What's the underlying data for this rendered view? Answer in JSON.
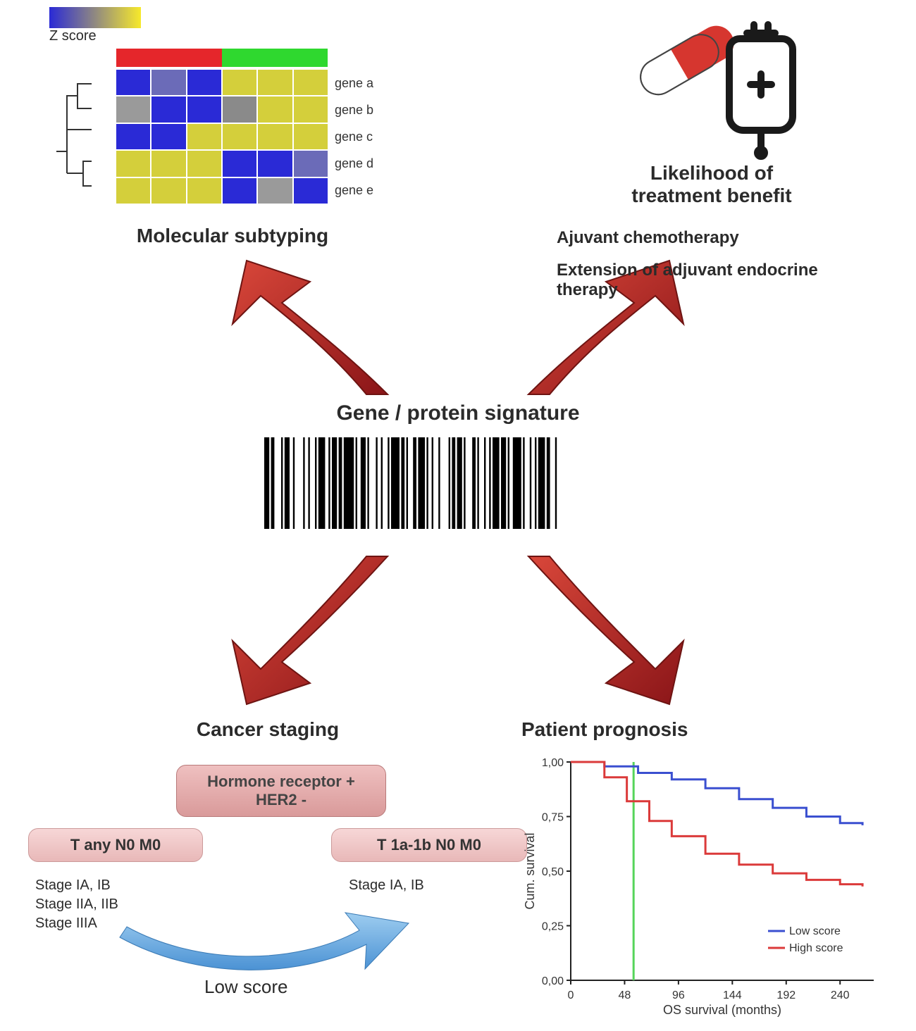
{
  "center": {
    "title": "Gene / protein signature"
  },
  "molecular_subtyping": {
    "title": "Molecular subtyping",
    "z_label": "Z score",
    "gene_labels": [
      "gene a",
      "gene b",
      "gene c",
      "gene d",
      "gene e"
    ],
    "colorbar": {
      "low": "#2a2ad6",
      "high": "#f7e92b"
    },
    "group_bar": {
      "left": "#e5262b",
      "right": "#2fd82f"
    },
    "heatmap": {
      "rows": 5,
      "cols": 6,
      "cells": [
        [
          "#2a2ad6",
          "#6b6bb8",
          "#2a2ad6",
          "#d4cf3b",
          "#d4cf3b",
          "#d4cf3b"
        ],
        [
          "#9a9a9a",
          "#2a2ad6",
          "#2a2ad6",
          "#8a8a8a",
          "#d4cf3b",
          "#d4cf3b"
        ],
        [
          "#2a2ad6",
          "#2a2ad6",
          "#d4cf3b",
          "#d4cf3b",
          "#d4cf3b",
          "#d4cf3b"
        ],
        [
          "#d4cf3b",
          "#d4cf3b",
          "#d4cf3b",
          "#2a2ad6",
          "#2a2ad6",
          "#6b6bb8"
        ],
        [
          "#d4cf3b",
          "#d4cf3b",
          "#d4cf3b",
          "#2a2ad6",
          "#9a9a9a",
          "#2a2ad6"
        ]
      ]
    }
  },
  "treatment_benefit": {
    "title": "Likelihood of\ntreatment benefit",
    "line1": "Ajuvant chemotherapy",
    "line2": "Extension of adjuvant endocrine therapy",
    "pill_colors": {
      "red": "#d6362f",
      "white": "#fafafa",
      "outline": "#1a1a1a"
    }
  },
  "cancer_staging": {
    "title": "Cancer staging",
    "hormone": "Hormone receptor +\nHER2 -",
    "left_pill": "T any  N0  M0",
    "right_pill": "T 1a-1b  N0  M0",
    "left_stages": [
      "Stage IA, IB",
      "Stage IIA, IIB",
      "Stage IIIA"
    ],
    "right_stages": [
      "Stage IA, IB"
    ],
    "arrow_label": "Low score",
    "arrow_color": "#5aa5e6"
  },
  "prognosis": {
    "title": "Patient prognosis",
    "ylabel": "Cum. survival",
    "xlabel": "OS survival (months)",
    "yticks": [
      "1,00",
      "0,75",
      "0,50",
      "0,25",
      "0,00"
    ],
    "xticks": [
      "0",
      "48",
      "96",
      "144",
      "192",
      "240"
    ],
    "legend": {
      "low": "Low score",
      "high": "High score"
    },
    "colors": {
      "low": "#3a4fd0",
      "high": "#db3a3a",
      "cutline": "#56d45a",
      "axis": "#222"
    },
    "low_points": [
      [
        0,
        1.0
      ],
      [
        30,
        0.98
      ],
      [
        60,
        0.95
      ],
      [
        90,
        0.92
      ],
      [
        120,
        0.88
      ],
      [
        150,
        0.83
      ],
      [
        180,
        0.79
      ],
      [
        210,
        0.75
      ],
      [
        240,
        0.72
      ],
      [
        260,
        0.71
      ]
    ],
    "high_points": [
      [
        0,
        1.0
      ],
      [
        30,
        0.93
      ],
      [
        50,
        0.82
      ],
      [
        70,
        0.73
      ],
      [
        90,
        0.66
      ],
      [
        120,
        0.58
      ],
      [
        150,
        0.53
      ],
      [
        180,
        0.49
      ],
      [
        210,
        0.46
      ],
      [
        240,
        0.44
      ],
      [
        260,
        0.43
      ]
    ],
    "cut_x": 56
  },
  "arrows": {
    "fill_dark": "#8a1518",
    "fill_light": "#d9473a"
  }
}
